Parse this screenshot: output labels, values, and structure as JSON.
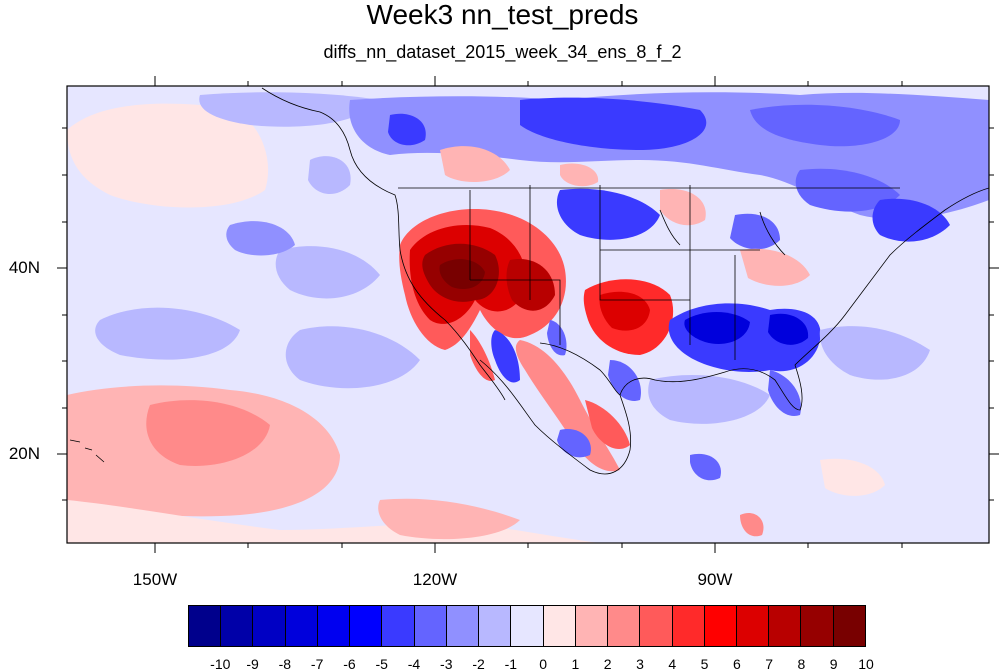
{
  "title": "Week3 nn_test_preds",
  "subtitle": "diffs_nn_dataset_2015_week_34_ens_8_f_2",
  "axes": {
    "lat_labels": [
      "20N",
      "40N"
    ],
    "lon_labels": [
      "150W",
      "120W",
      "90W"
    ]
  },
  "colorbar": {
    "labels": [
      "-10",
      "-9",
      "-8",
      "-7",
      "-6",
      "-5",
      "-4",
      "-3",
      "-2",
      "-1",
      "0",
      "1",
      "2",
      "3",
      "4",
      "5",
      "6",
      "7",
      "8",
      "9",
      "10"
    ],
    "colors": [
      "#00008c",
      "#0000a8",
      "#0000c4",
      "#0000dc",
      "#0000f0",
      "#0000ff",
      "#3a3aff",
      "#6464ff",
      "#9090ff",
      "#b8b8ff",
      "#e6e6ff",
      "#ffe6e6",
      "#ffb4b4",
      "#ff8a8a",
      "#ff5a5a",
      "#ff2a2a",
      "#ff0000",
      "#dc0000",
      "#b80000",
      "#960000",
      "#780000"
    ]
  },
  "colors": {
    "background": "#e6e6ff",
    "strong_positive": "#7a0000",
    "strong_negative": "#0000e0"
  }
}
